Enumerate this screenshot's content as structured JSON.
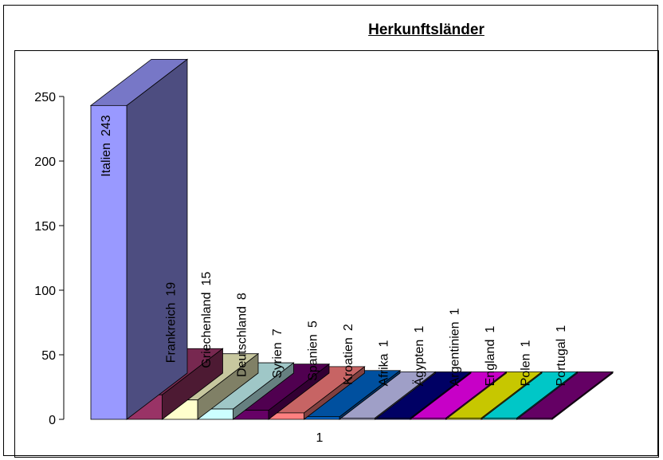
{
  "chart_data": {
    "type": "bar",
    "title": "Herkunftsländer",
    "xlabel": "",
    "ylabel": "",
    "categories": [
      "1"
    ],
    "ylim": [
      0,
      250
    ],
    "yticks": [
      0,
      50,
      100,
      150,
      200,
      250
    ],
    "grid": false,
    "legend": "none",
    "series": [
      {
        "name": "Italien",
        "values": [
          243
        ],
        "color": "#9999ff"
      },
      {
        "name": "Frankreich",
        "values": [
          19
        ],
        "color": "#993366"
      },
      {
        "name": "Griechenland",
        "values": [
          15
        ],
        "color": "#ffffcc"
      },
      {
        "name": "Deutschland",
        "values": [
          8
        ],
        "color": "#ccffff"
      },
      {
        "name": "Syrien",
        "values": [
          7
        ],
        "color": "#660066"
      },
      {
        "name": "Spanien",
        "values": [
          5
        ],
        "color": "#ff8080"
      },
      {
        "name": "Kroatien",
        "values": [
          2
        ],
        "color": "#0066cc"
      },
      {
        "name": "Afrika",
        "values": [
          1
        ],
        "color": "#ccccff"
      },
      {
        "name": "Ägypten",
        "values": [
          1
        ],
        "color": "#000080"
      },
      {
        "name": "Argentinien",
        "values": [
          1
        ],
        "color": "#ff00ff"
      },
      {
        "name": "England",
        "values": [
          1
        ],
        "color": "#ffff00"
      },
      {
        "name": "Polen",
        "values": [
          1
        ],
        "color": "#00ffff"
      },
      {
        "name": "Portugal",
        "values": [
          1
        ],
        "color": "#800080"
      }
    ]
  }
}
